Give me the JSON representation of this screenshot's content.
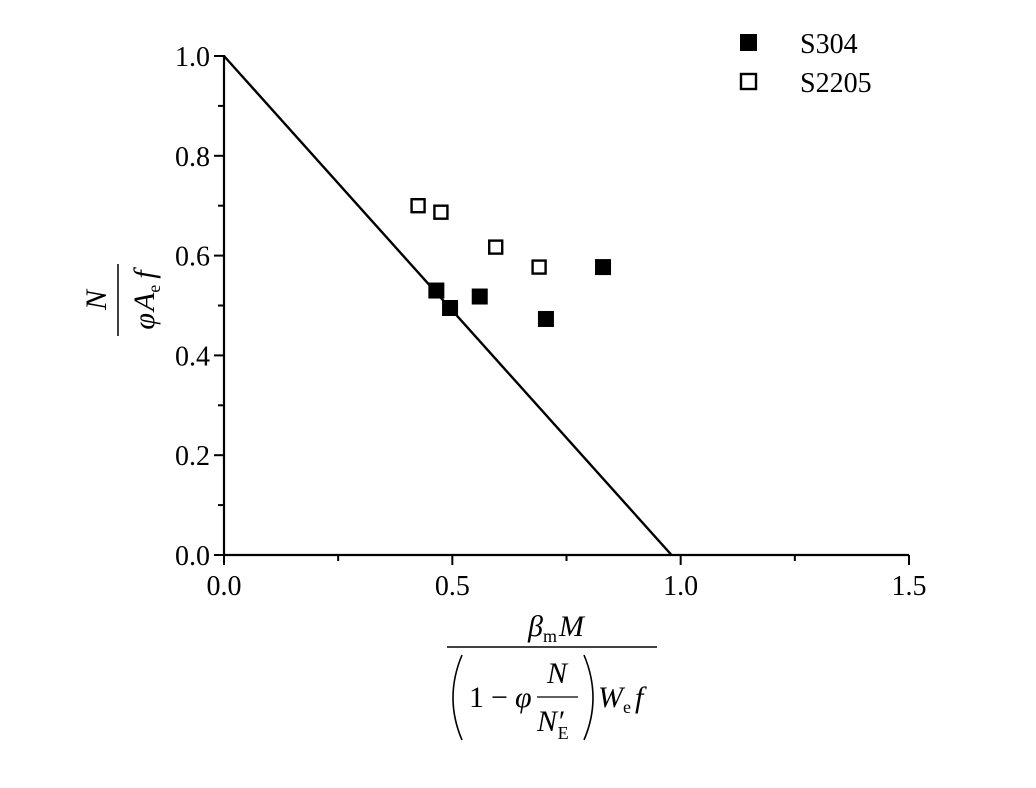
{
  "chart_data": {
    "type": "scatter",
    "xlabel": {
      "numerator": {
        "beta": "β",
        "beta_sub": "m",
        "moment": "M"
      },
      "denominator": {
        "one": "1",
        "minus": "−",
        "phi": "φ",
        "frac_num": "N",
        "frac_den": "N′",
        "frac_den_sub": "E",
        "section": "W",
        "section_sub": "e",
        "strength": "f"
      }
    },
    "ylabel": {
      "numerator": "N",
      "denominator": {
        "phi": "φ",
        "area": "A",
        "area_sub": "e",
        "strength": "f"
      }
    },
    "xlim": [
      0.0,
      1.5
    ],
    "ylim": [
      0.0,
      1.0
    ],
    "x_ticks": [
      "0.0",
      "0.5",
      "1.0",
      "1.5"
    ],
    "y_ticks": [
      "0.0",
      "0.2",
      "0.4",
      "0.6",
      "0.8",
      "1.0"
    ],
    "legend_position": "top-right",
    "reference_line": {
      "x": [
        0.0,
        0.98
      ],
      "y": [
        1.0,
        0.0
      ],
      "color": "#000000"
    },
    "series": [
      {
        "name": "S304",
        "marker": "filled-square",
        "color": "#000000",
        "points": [
          [
            0.465,
            0.53
          ],
          [
            0.495,
            0.495
          ],
          [
            0.56,
            0.518
          ],
          [
            0.705,
            0.473
          ],
          [
            0.83,
            0.577
          ]
        ]
      },
      {
        "name": "S2205",
        "marker": "open-square",
        "color": "#000000",
        "points": [
          [
            0.425,
            0.7
          ],
          [
            0.475,
            0.687
          ],
          [
            0.595,
            0.617
          ],
          [
            0.69,
            0.577
          ]
        ]
      }
    ]
  }
}
